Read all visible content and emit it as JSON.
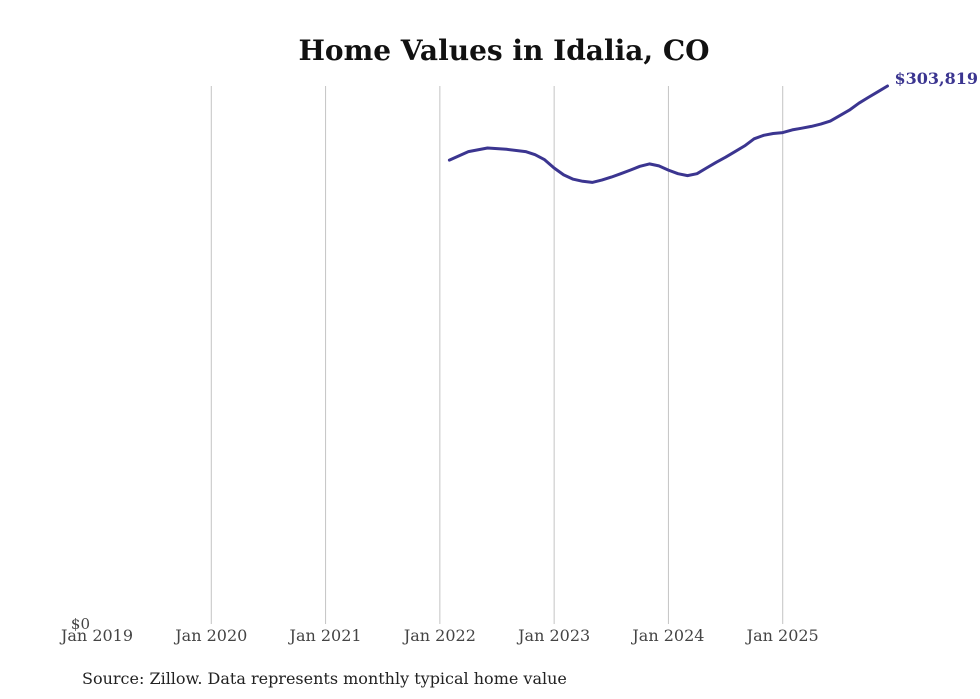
{
  "chart_data": {
    "type": "line",
    "title": "Home Values in Idalia, CO",
    "xlabel": "",
    "ylabel": "",
    "x_ticks": [
      "Jan 2019",
      "Jan 2020",
      "Jan 2021",
      "Jan 2022",
      "Jan 2023",
      "Jan 2024",
      "Jan 2025"
    ],
    "x_tick_years": [
      2019,
      2020,
      2021,
      2022,
      2023,
      2024,
      2025
    ],
    "y_ticks": [
      {
        "value": 0,
        "label": "$0"
      }
    ],
    "xlim": [
      2019.0,
      2026.0
    ],
    "ylim": [
      0,
      303819
    ],
    "grid": {
      "vertical": true,
      "horizontal": false
    },
    "legend": "none",
    "line_color": "#3b3590",
    "series": [
      {
        "x": [
          "2022-02",
          "2022-04",
          "2022-06",
          "2022-08",
          "2022-10",
          "2022-11",
          "2022-12",
          "2023-01",
          "2023-02",
          "2023-03",
          "2023-04",
          "2023-05",
          "2023-06",
          "2023-07",
          "2023-08",
          "2023-09",
          "2023-10",
          "2023-11",
          "2023-12",
          "2024-01",
          "2024-02",
          "2024-03",
          "2024-04",
          "2024-05",
          "2024-06",
          "2024-07",
          "2024-08",
          "2024-09",
          "2024-10",
          "2024-11",
          "2024-12",
          "2025-01",
          "2025-02",
          "2025-03",
          "2025-04",
          "2025-05",
          "2025-06",
          "2025-07",
          "2025-08",
          "2025-09",
          "2025-10",
          "2025-11",
          "2025-12"
        ],
        "values": [
          262000,
          266800,
          268800,
          268100,
          266800,
          265000,
          262200,
          257500,
          253600,
          251200,
          250000,
          249400,
          250700,
          252400,
          254300,
          256300,
          258500,
          259800,
          258700,
          256300,
          254300,
          253200,
          254300,
          257500,
          260700,
          263600,
          266800,
          270000,
          274000,
          276000,
          277000,
          277500,
          279000,
          280000,
          281000,
          282300,
          284000,
          287100,
          290200,
          294100,
          297400,
          300600,
          303819
        ]
      }
    ],
    "end_label": "$303,819",
    "source": "Source: Zillow. Data represents monthly typical home value"
  }
}
